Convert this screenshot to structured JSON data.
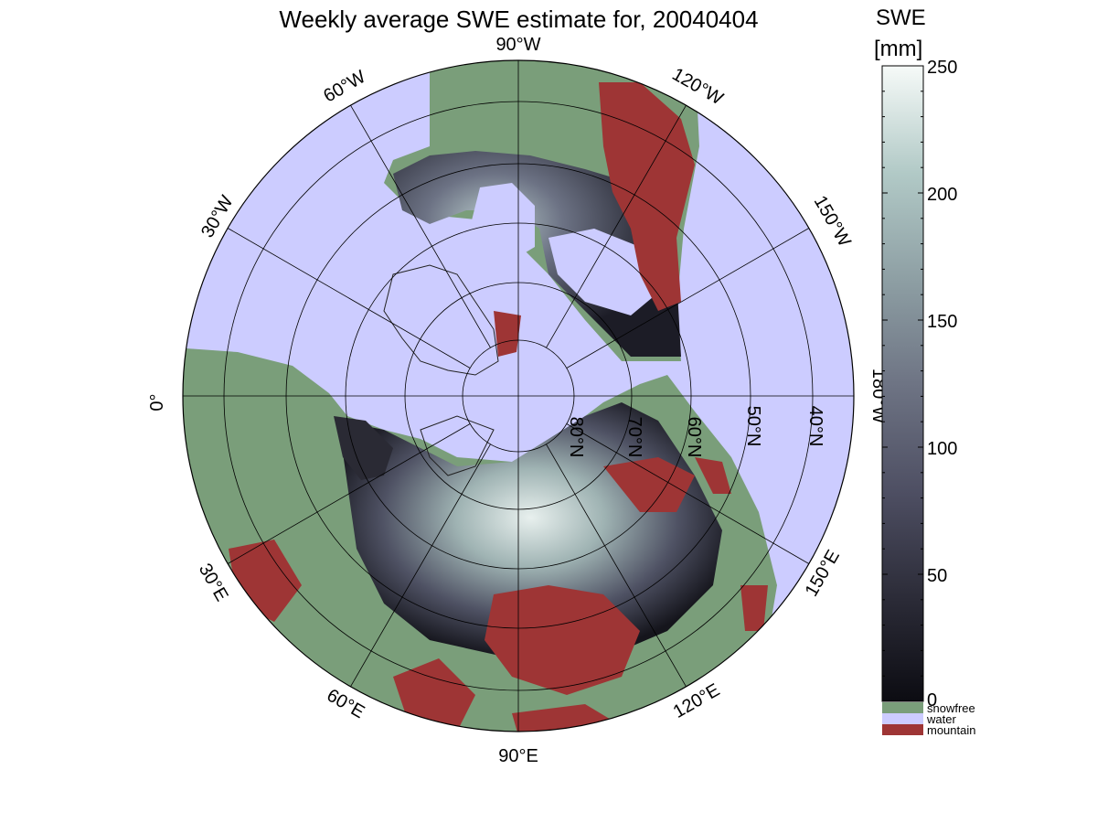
{
  "title": "Weekly average SWE estimate for, 20040404",
  "colorbar": {
    "title": "SWE",
    "unit": "[mm]",
    "min": 0,
    "max": 250,
    "ticks": [
      "250",
      "200",
      "150",
      "100",
      "50",
      "0"
    ],
    "gradient": [
      "#0c0c12",
      "#2b2b37",
      "#4e4f63",
      "#6e7484",
      "#8d9ea3",
      "#b1c9c6",
      "#f6faf8"
    ]
  },
  "legend": [
    {
      "label": "snowfree",
      "color": "#7a9e7a"
    },
    {
      "label": "water",
      "color": "#ccccff"
    },
    {
      "label": "mountain",
      "color": "#9e3535"
    }
  ],
  "map": {
    "projection": "north polar stereographic",
    "ocean_color": "#ccccff",
    "land_color": "#7a9e7a",
    "mountain_color": "#9e3535",
    "longitude_labels": [
      "90°W",
      "120°W",
      "150°W",
      "180°W",
      "150°E",
      "120°E",
      "90°E",
      "60°E",
      "30°E",
      "0°",
      "30°W",
      "60°W"
    ],
    "latitude_labels": [
      "80°N",
      "70°N",
      "60°N",
      "50°N",
      "40°N"
    ]
  }
}
